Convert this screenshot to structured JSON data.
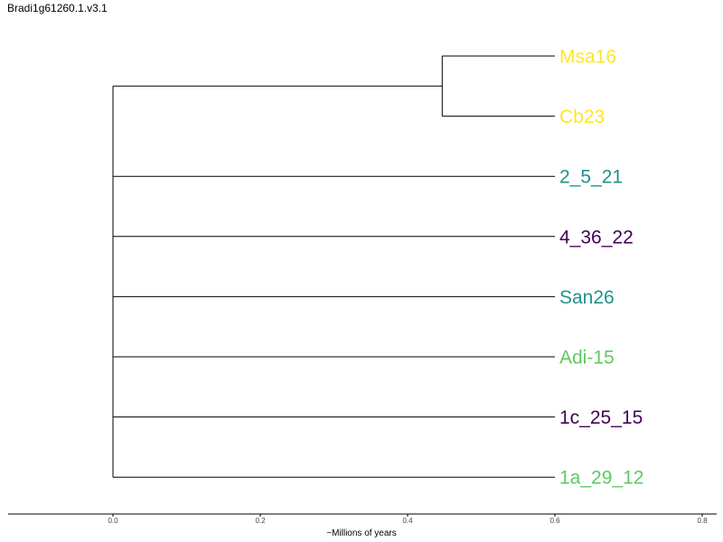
{
  "chart_data": {
    "type": "dendrogram",
    "title": "Bradi1g61260.1.v3.1",
    "xlabel": "~Millions of years",
    "xlim": [
      -0.14,
      0.82
    ],
    "xticks": [
      0.0,
      0.2,
      0.4,
      0.6,
      0.8
    ],
    "xtick_labels": [
      "0.0",
      "0.2",
      "0.4",
      "0.6",
      "0.8"
    ],
    "root_x": 0.0,
    "leaf_x": 0.6,
    "clades": [
      {
        "node_x": 0.447,
        "leaves": [
          "Msa16",
          "Cb23"
        ]
      }
    ],
    "leaves": [
      {
        "name": "Msa16",
        "color": "#fde725"
      },
      {
        "name": "Cb23",
        "color": "#fde725"
      },
      {
        "name": "2_5_21",
        "color": "#21918c"
      },
      {
        "name": "4_36_22",
        "color": "#440154"
      },
      {
        "name": "San26",
        "color": "#21918c"
      },
      {
        "name": "Adi-15",
        "color": "#5ec962"
      },
      {
        "name": "1c_25_15",
        "color": "#440154"
      },
      {
        "name": "1a_29_12",
        "color": "#5ec962"
      }
    ],
    "line_color": "#000000",
    "grid": false
  }
}
